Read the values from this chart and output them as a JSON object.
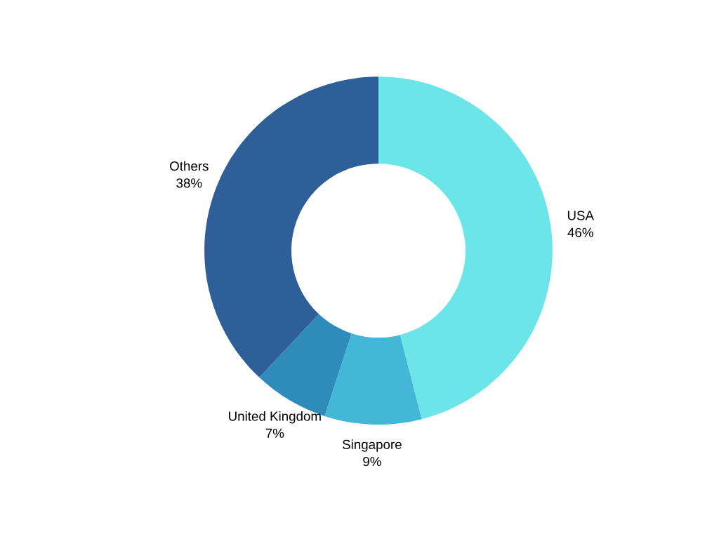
{
  "chart_data": {
    "type": "donut",
    "categories": [
      "USA",
      "Singapore",
      "United Kingdom",
      "Others"
    ],
    "values": [
      46,
      9,
      7,
      38
    ],
    "value_labels": [
      "46%",
      "9%",
      "7%",
      "38%"
    ],
    "colors": [
      "#6be5e8",
      "#42b7d6",
      "#2e8bba",
      "#2e5f98"
    ],
    "legend": false
  }
}
